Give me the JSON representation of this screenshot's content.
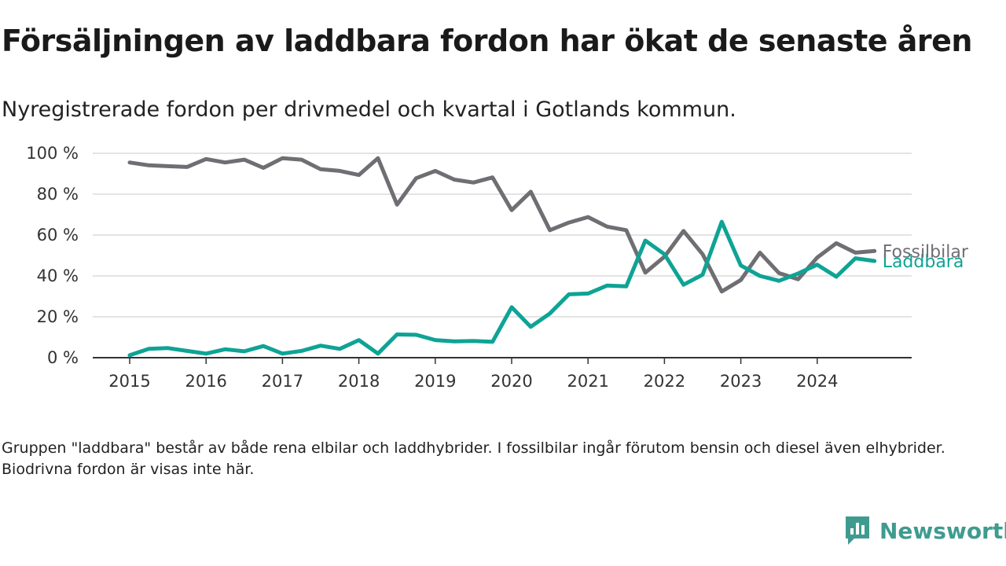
{
  "title": "Försäljningen av laddbara fordon har ökat de senaste åren",
  "subtitle": "Nyregistrerade fordon per drivmedel och kvartal i Gotlands kommun.",
  "footnote": "Gruppen \"laddbara\" består av både rena elbilar och laddhybrider. I fossilbilar ingår förutom bensin och diesel även elhybrider. Biodrivna fordon är visas inte här.",
  "brand": {
    "name": "Newsworthy",
    "color": "#3f9b8f"
  },
  "chart_data": {
    "type": "line",
    "x": [
      "2015-Q1",
      "2015-Q2",
      "2015-Q3",
      "2015-Q4",
      "2016-Q1",
      "2016-Q2",
      "2016-Q3",
      "2016-Q4",
      "2017-Q1",
      "2017-Q2",
      "2017-Q3",
      "2017-Q4",
      "2018-Q1",
      "2018-Q2",
      "2018-Q3",
      "2018-Q4",
      "2019-Q1",
      "2019-Q2",
      "2019-Q3",
      "2019-Q4",
      "2020-Q1",
      "2020-Q2",
      "2020-Q3",
      "2020-Q4",
      "2021-Q1",
      "2021-Q2",
      "2021-Q3",
      "2021-Q4",
      "2022-Q1",
      "2022-Q2",
      "2022-Q3",
      "2022-Q4",
      "2023-Q1",
      "2023-Q2",
      "2023-Q3",
      "2023-Q4",
      "2024-Q1",
      "2024-Q2",
      "2024-Q3",
      "2024-Q4"
    ],
    "x_ticks": [
      "2015",
      "2016",
      "2017",
      "2018",
      "2019",
      "2020",
      "2021",
      "2022",
      "2023",
      "2024"
    ],
    "y_ticks": [
      "0 %",
      "20 %",
      "40 %",
      "60 %",
      "80 %",
      "100 %"
    ],
    "ylim": [
      0,
      100
    ],
    "grid": true,
    "series": [
      {
        "name": "Fossilbilar",
        "color": "#6e6e73",
        "values": [
          95.5,
          94.1,
          93.7,
          93.3,
          97.2,
          95.5,
          96.9,
          92.9,
          97.6,
          96.9,
          92.2,
          91.4,
          89.4,
          97.6,
          74.9,
          87.8,
          91.4,
          87.1,
          85.7,
          88.2,
          72.2,
          81.2,
          62.4,
          66.1,
          68.8,
          64.1,
          62.4,
          41.6,
          49.4,
          62.0,
          50.6,
          32.4,
          38.0,
          51.4,
          41.4,
          38.4,
          49.0,
          56.0,
          51.4,
          52.2
        ]
      },
      {
        "name": "Laddbara",
        "color": "#0ea395",
        "values": [
          1.2,
          4.3,
          4.7,
          3.3,
          2.0,
          4.1,
          3.1,
          5.7,
          2.0,
          3.3,
          5.9,
          4.3,
          8.6,
          2.0,
          11.4,
          11.2,
          8.6,
          8.0,
          8.2,
          7.8,
          24.7,
          15.1,
          21.6,
          31.0,
          31.4,
          35.3,
          34.9,
          57.3,
          50.6,
          35.7,
          40.6,
          66.5,
          45.1,
          40.0,
          37.6,
          41.2,
          45.5,
          39.6,
          48.6,
          47.3
        ]
      }
    ]
  }
}
